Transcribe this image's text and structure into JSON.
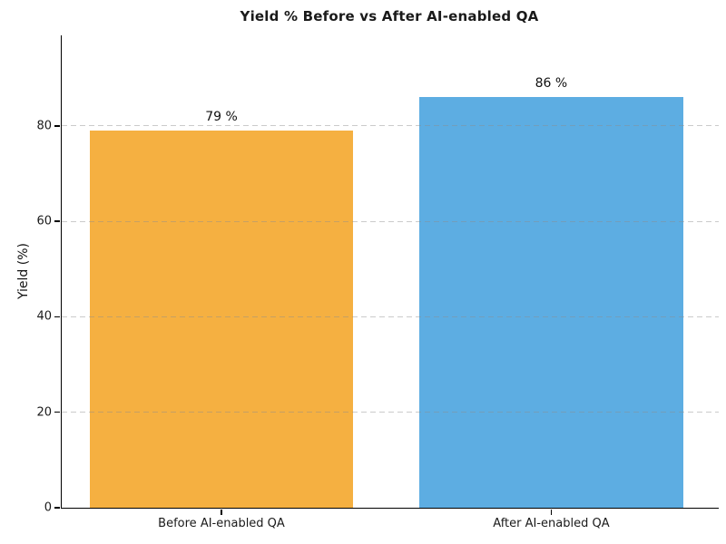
{
  "chart_data": {
    "type": "bar",
    "title": "Yield % Before vs After AI-enabled QA",
    "ylabel": "Yield (%)",
    "xlabel": "",
    "categories": [
      "Before AI-enabled QA",
      "After AI-enabled QA"
    ],
    "values": [
      79,
      86
    ],
    "bar_labels": [
      "79 %",
      "86 %"
    ],
    "bar_colors": [
      "#f5b041",
      "#5dade2"
    ],
    "yticks": [
      0,
      20,
      40,
      60,
      80
    ],
    "ylim": [
      0,
      99
    ],
    "grid": {
      "axis": "y",
      "style": "dashed",
      "color": "#c9c9c9",
      "drawn_over_bars": true
    },
    "legend_position": "none",
    "background_color": "#ffffff",
    "text_color": "#111111"
  }
}
